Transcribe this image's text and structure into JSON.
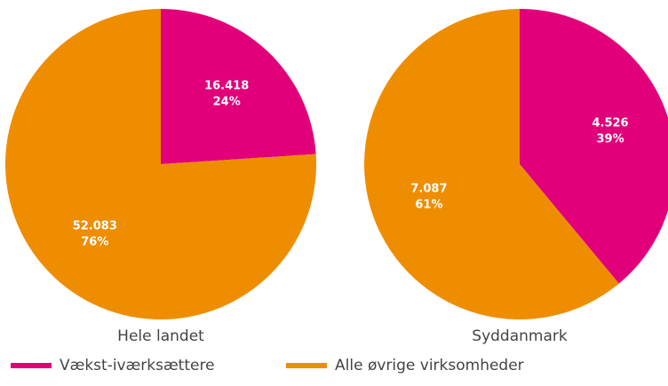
{
  "chart_data": [
    {
      "type": "pie",
      "title": "Hele landet",
      "categories": [
        "Vækst-iværksættere",
        "Alle øvrige virksomheder"
      ],
      "values": [
        16418,
        52083
      ],
      "value_labels": [
        "16.418",
        "52.083"
      ],
      "percent_labels": [
        "24%",
        "76%"
      ],
      "colors": [
        "#e2007a",
        "#ef8d00"
      ]
    },
    {
      "type": "pie",
      "title": "Syddanmark",
      "categories": [
        "Vækst-iværksættere",
        "Alle øvrige virksomheder"
      ],
      "values": [
        4526,
        7087
      ],
      "value_labels": [
        "4.526",
        "7.087"
      ],
      "percent_labels": [
        "39%",
        "61%"
      ],
      "colors": [
        "#e2007a",
        "#ef8d00"
      ]
    }
  ]
}
